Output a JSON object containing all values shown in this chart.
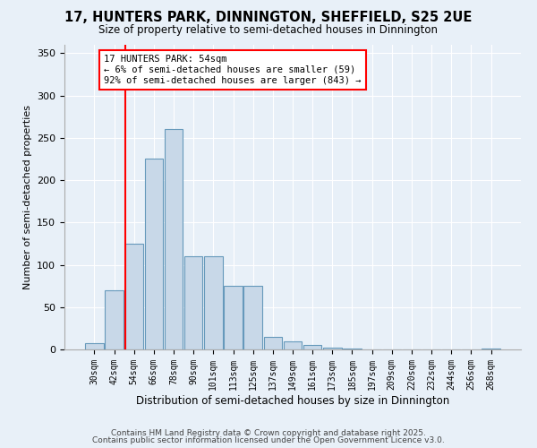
{
  "title1": "17, HUNTERS PARK, DINNINGTON, SHEFFIELD, S25 2UE",
  "title2": "Size of property relative to semi-detached houses in Dinnington",
  "xlabel": "Distribution of semi-detached houses by size in Dinnington",
  "ylabel": "Number of semi-detached properties",
  "bins": [
    "30sqm",
    "42sqm",
    "54sqm",
    "66sqm",
    "78sqm",
    "90sqm",
    "101sqm",
    "113sqm",
    "125sqm",
    "137sqm",
    "149sqm",
    "161sqm",
    "173sqm",
    "185sqm",
    "197sqm",
    "209sqm",
    "220sqm",
    "232sqm",
    "244sqm",
    "256sqm",
    "268sqm"
  ],
  "values": [
    7,
    70,
    125,
    225,
    260,
    110,
    110,
    75,
    75,
    15,
    10,
    5,
    2,
    1,
    0,
    0,
    0,
    0,
    0,
    0,
    1
  ],
  "bar_color": "#c8d8e8",
  "bar_edge_color": "#6699bb",
  "red_line_index": 2,
  "annotation_text": "17 HUNTERS PARK: 54sqm\n← 6% of semi-detached houses are smaller (59)\n92% of semi-detached houses are larger (843) →",
  "annotation_box_color": "white",
  "annotation_border_color": "red",
  "ylim": [
    0,
    360
  ],
  "yticks": [
    0,
    50,
    100,
    150,
    200,
    250,
    300,
    350
  ],
  "background_color": "#e8f0f8",
  "grid_color": "#c0ccd8",
  "footer1": "Contains HM Land Registry data © Crown copyright and database right 2025.",
  "footer2": "Contains public sector information licensed under the Open Government Licence v3.0."
}
